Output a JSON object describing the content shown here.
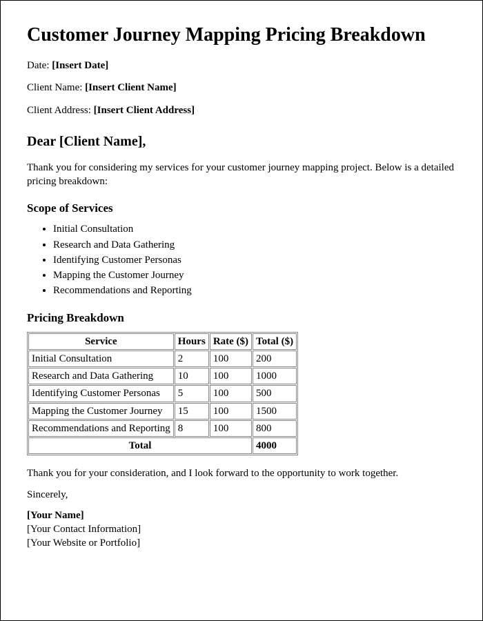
{
  "title": "Customer Journey Mapping Pricing Breakdown",
  "fields": {
    "date_label": "Date: ",
    "date_value": "[Insert Date]",
    "client_name_label": "Client Name: ",
    "client_name_value": "[Insert Client Name]",
    "client_address_label": "Client Address: ",
    "client_address_value": "[Insert Client Address]"
  },
  "greeting": "Dear [Client Name],",
  "intro": "Thank you for considering my services for your customer journey mapping project. Below is a detailed pricing breakdown:",
  "scope_heading": "Scope of Services",
  "scope_items": [
    "Initial Consultation",
    "Research and Data Gathering",
    "Identifying Customer Personas",
    "Mapping the Customer Journey",
    "Recommendations and Reporting"
  ],
  "pricing_heading": "Pricing Breakdown",
  "table": {
    "columns": [
      "Service",
      "Hours",
      "Rate ($)",
      "Total ($)"
    ],
    "rows": [
      [
        "Initial Consultation",
        "2",
        "100",
        "200"
      ],
      [
        "Research and Data Gathering",
        "10",
        "100",
        "1000"
      ],
      [
        "Identifying Customer Personas",
        "5",
        "100",
        "500"
      ],
      [
        "Mapping the Customer Journey",
        "15",
        "100",
        "1500"
      ],
      [
        "Recommendations and Reporting",
        "8",
        "100",
        "800"
      ]
    ],
    "total_label": "Total",
    "total_value": "4000"
  },
  "closing": "Thank you for your consideration, and I look forward to the opportunity to work together.",
  "signoff": "Sincerely,",
  "signature": {
    "name": "[Your Name]",
    "contact": "[Your Contact Information]",
    "website": "[Your Website or Portfolio]"
  }
}
